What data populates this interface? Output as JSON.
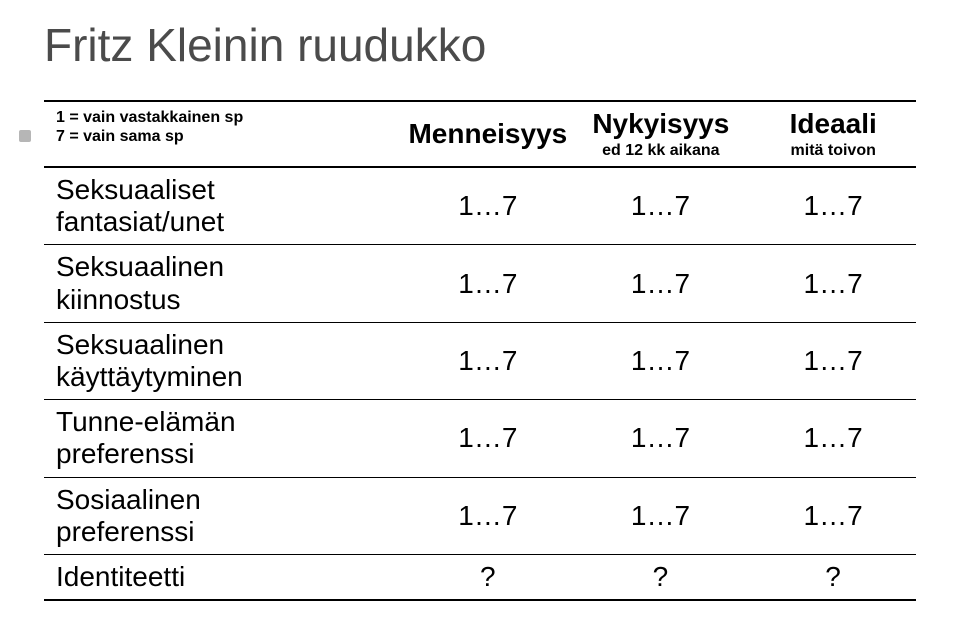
{
  "title": "Fritz Kleinin ruudukko",
  "legend": {
    "line1": "1 = vain vastakkainen sp",
    "line2": "7 = vain sama sp"
  },
  "columns": {
    "past": {
      "label": "Menneisyys",
      "sub": ""
    },
    "present": {
      "label": "Nykyisyys",
      "sub": "ed 12 kk aikana"
    },
    "ideal": {
      "label": "Ideaali",
      "sub": "mitä toivon"
    }
  },
  "rows": {
    "fantasies": {
      "label_l1": "Seksuaaliset",
      "label_l2": "fantasiat/unet",
      "past": "1…7",
      "present": "1…7",
      "ideal": "1…7"
    },
    "interest": {
      "label_l1": "Seksuaalinen",
      "label_l2": "kiinnostus",
      "past": "1…7",
      "present": "1…7",
      "ideal": "1…7"
    },
    "behavior": {
      "label_l1": "Seksuaalinen",
      "label_l2": "käyttäytyminen",
      "past": "1…7",
      "present": "1…7",
      "ideal": "1…7"
    },
    "emotional": {
      "label_l1": "Tunne-elämän",
      "label_l2": "preferenssi",
      "past": "1…7",
      "present": "1…7",
      "ideal": "1…7"
    },
    "social": {
      "label_l1": "Sosiaalinen",
      "label_l2": "preferenssi",
      "past": "1…7",
      "present": "1…7",
      "ideal": "1…7"
    },
    "identity": {
      "label_l1": "Identiteetti",
      "label_l2": "",
      "past": "?",
      "present": "?",
      "ideal": "?"
    }
  },
  "colors": {
    "title": "#4b4b4b",
    "bullet": "#b6b6b6",
    "border": "#000000",
    "text": "#000000",
    "bg": "#ffffff"
  },
  "fontsize": {
    "title": 46,
    "header": 28,
    "header_sub": 16,
    "legend": 16,
    "row": 28,
    "cell": 28
  }
}
